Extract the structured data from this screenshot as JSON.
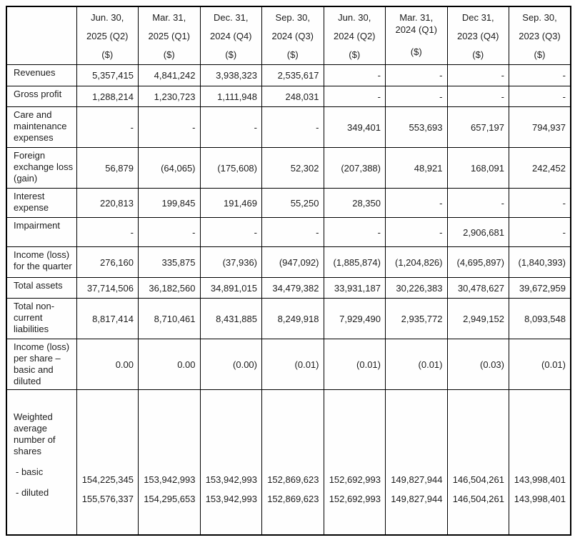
{
  "table": {
    "headers": [
      {
        "date": [
          "Jun. 30,",
          "2025 (Q2)"
        ],
        "unit": "($)",
        "tight": false
      },
      {
        "date": [
          "Mar. 31,",
          "2025 (Q1)"
        ],
        "unit": "($)",
        "tight": false
      },
      {
        "date": [
          "Dec. 31,",
          "2024 (Q4)"
        ],
        "unit": "($)",
        "tight": false
      },
      {
        "date": [
          "Sep. 30,",
          "2024 (Q3)"
        ],
        "unit": "($)",
        "tight": false
      },
      {
        "date": [
          "Jun. 30,",
          "2024 (Q2)"
        ],
        "unit": "($)",
        "tight": false
      },
      {
        "date": [
          "Mar. 31,",
          "2024 (Q1)"
        ],
        "unit": "($)",
        "tight": true
      },
      {
        "date": [
          "Dec 31,",
          "2023 (Q4)"
        ],
        "unit": "($)",
        "tight": false
      },
      {
        "date": [
          "Sep. 30,",
          "2023 (Q3)"
        ],
        "unit": "($)",
        "tight": false
      }
    ],
    "rows": [
      {
        "label": "Revenues",
        "values": [
          "5,357,415",
          "4,841,242",
          "3,938,323",
          "2,535,617",
          "-",
          "-",
          "-",
          "-"
        ]
      },
      {
        "label": "Gross profit",
        "values": [
          "1,288,214",
          "1,230,723",
          "1,111,948",
          "248,031",
          "-",
          "-",
          "-",
          "-"
        ]
      },
      {
        "label": "Care and maintenance expenses",
        "values": [
          "-",
          "-",
          "-",
          "-",
          "349,401",
          "553,693",
          "657,197",
          "794,937"
        ]
      },
      {
        "label": "Foreign exchange loss (gain)",
        "values": [
          "56,879",
          "(64,065)",
          "(175,608)",
          "52,302",
          "(207,388)",
          "48,921",
          "168,091",
          "242,452"
        ]
      },
      {
        "label": "Interest expense",
        "values": [
          "220,813",
          "199,845",
          "191,469",
          "55,250",
          "28,350",
          "-",
          "-",
          "-"
        ]
      },
      {
        "label": "Impairment",
        "values": [
          "-",
          "-",
          "-",
          "-",
          "-",
          "-",
          "2,906,681",
          "-"
        ]
      },
      {
        "label": "Income (loss) for the quarter",
        "values": [
          "276,160",
          "335,875",
          "(37,936)",
          "(947,092)",
          "(1,885,874)",
          "(1,204,826)",
          "(4,695,897)",
          "(1,840,393)"
        ]
      },
      {
        "label": "Total assets",
        "values": [
          "37,714,506",
          "36,182,560",
          "34,891,015",
          "34,479,382",
          "33,931,187",
          "30,226,383",
          "30,478,627",
          "39,672,959"
        ]
      },
      {
        "label": "Total non-current liabilities",
        "values": [
          "8,817,414",
          "8,710,461",
          "8,431,885",
          "8,249,918",
          "7,929,490",
          "2,935,772",
          "2,949,152",
          "8,093,548"
        ]
      },
      {
        "label": "Income (loss) per share – basic and diluted",
        "values": [
          "0.00",
          "0.00",
          "(0.00)",
          "(0.01)",
          "(0.01)",
          "(0.01)",
          "(0.03)",
          "(0.01)"
        ]
      }
    ],
    "shares_row": {
      "label": "Weighted average number of shares",
      "sub_labels": [
        "- basic",
        "- diluted"
      ],
      "basic_values": [
        "154,225,345",
        "153,942,993",
        "153,942,993",
        "152,869,623",
        "152,692,993",
        "149,827,944",
        "146,504,261",
        "143,998,401"
      ],
      "diluted_values": [
        "155,576,337",
        "154,295,653",
        "153,942,993",
        "152,869,623",
        "152,692,993",
        "149,827,944",
        "146,504,261",
        "143,998,401"
      ]
    }
  }
}
